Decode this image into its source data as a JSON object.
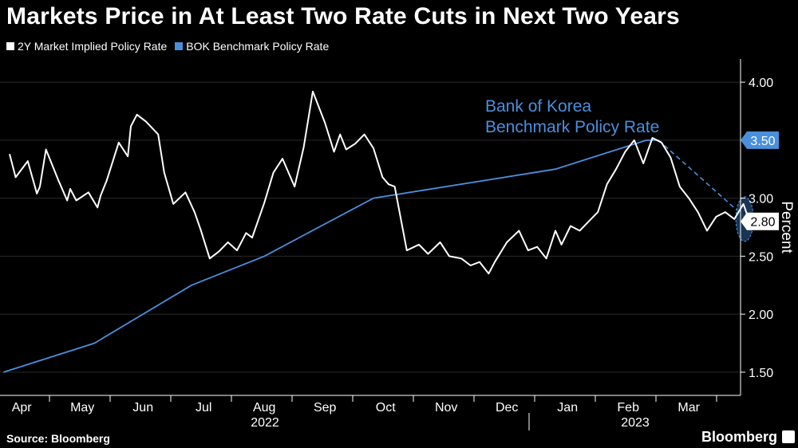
{
  "header": {
    "title": "Markets Price in At Least Two Rate Cuts in Next Two Years"
  },
  "footer": {
    "source": "Source: Bloomberg",
    "brand": "Bloomberg"
  },
  "colors": {
    "background": "#000000",
    "market_line": "#ffffff",
    "bok_line": "#4a8fdc",
    "grid": "#2a2a2a",
    "badge_blue": "#4a8fdc"
  },
  "icons": {
    "brand": "bloomberg-terminal-icon"
  },
  "chart_data": {
    "type": "line",
    "title": "Markets Price in At Least Two Rate Cuts in Next Two Years",
    "ylabel": "Percent",
    "xlabel": "",
    "ylim": [
      1.3,
      4.2
    ],
    "yticks": [
      1.5,
      2.0,
      2.5,
      3.0,
      3.5,
      4.0
    ],
    "ytick_labels": [
      "1.50",
      "2.00",
      "2.50",
      "3.00",
      "3.50",
      "4.00"
    ],
    "x_months": [
      "Apr",
      "May",
      "Jun",
      "Jul",
      "Aug",
      "Sep",
      "Oct",
      "Nov",
      "Dec",
      "Jan",
      "Feb",
      "Mar"
    ],
    "x_years": [
      "2022",
      "2023"
    ],
    "legend_position": "top-left",
    "annotation": {
      "line1": "Bank of Korea",
      "line2": "Benchmark Policy Rate"
    },
    "last_value_labels": {
      "bok": "3.50",
      "market": "2.80"
    },
    "series": [
      {
        "name": "2Y Market Implied Policy Rate",
        "key": "market",
        "t": [
          0.0,
          0.1,
          0.3,
          0.45,
          0.5,
          0.6,
          0.8,
          0.95,
          1.0,
          1.1,
          1.3,
          1.45,
          1.5,
          1.6,
          1.8,
          1.95,
          2.0,
          2.1,
          2.25,
          2.45,
          2.55,
          2.7,
          2.9,
          3.05,
          3.15,
          3.3,
          3.45,
          3.6,
          3.75,
          3.9,
          4.0,
          4.2,
          4.35,
          4.5,
          4.7,
          4.85,
          5.0,
          5.2,
          5.35,
          5.45,
          5.55,
          5.7,
          5.85,
          6.0,
          6.15,
          6.25,
          6.35,
          6.55,
          6.75,
          6.9,
          7.1,
          7.25,
          7.45,
          7.6,
          7.75,
          7.9,
          8.0,
          8.2,
          8.4,
          8.55,
          8.7,
          8.85,
          9.0,
          9.1,
          9.25,
          9.4,
          9.55,
          9.7,
          9.85,
          10.0,
          10.15,
          10.3,
          10.45,
          10.6,
          10.75,
          10.9,
          11.05,
          11.2,
          11.35,
          11.5,
          11.65,
          11.8,
          11.95,
          12.1,
          12.2
        ],
        "values": [
          3.38,
          3.18,
          3.32,
          3.04,
          3.1,
          3.42,
          3.16,
          2.98,
          3.08,
          2.98,
          3.05,
          2.92,
          3.02,
          3.15,
          3.48,
          3.36,
          3.62,
          3.72,
          3.66,
          3.55,
          3.22,
          2.95,
          3.05,
          2.88,
          2.73,
          2.48,
          2.54,
          2.62,
          2.55,
          2.7,
          2.66,
          2.96,
          3.22,
          3.34,
          3.1,
          3.44,
          3.92,
          3.65,
          3.4,
          3.55,
          3.42,
          3.47,
          3.55,
          3.43,
          3.18,
          3.12,
          3.1,
          2.55,
          2.6,
          2.52,
          2.62,
          2.5,
          2.48,
          2.42,
          2.45,
          2.35,
          2.45,
          2.62,
          2.72,
          2.55,
          2.58,
          2.48,
          2.72,
          2.6,
          2.76,
          2.72,
          2.8,
          2.88,
          3.12,
          3.25,
          3.4,
          3.5,
          3.3,
          3.52,
          3.48,
          3.35,
          3.1,
          3.0,
          2.88,
          2.72,
          2.84,
          2.88,
          2.82,
          2.95,
          2.8
        ]
      },
      {
        "name": "BOK Benchmark Policy Rate",
        "key": "bok",
        "t": [
          -0.1,
          1.4,
          2.2,
          3.0,
          4.2,
          6.0,
          9.0,
          10.5,
          10.7
        ],
        "values": [
          1.5,
          1.75,
          2.0,
          2.25,
          2.5,
          3.0,
          3.25,
          3.5,
          3.5
        ],
        "forecast_t": [
          10.7,
          12.2
        ],
        "forecast_values": [
          3.5,
          2.8
        ]
      }
    ]
  }
}
